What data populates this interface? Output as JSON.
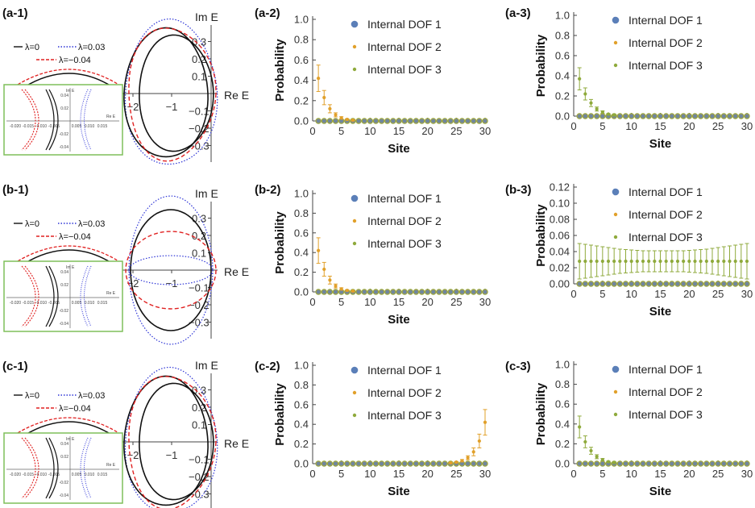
{
  "figure": {
    "panel_labels": [
      "(a-1)",
      "(a-2)",
      "(a-3)",
      "(b-1)",
      "(b-2)",
      "(b-3)",
      "(c-1)",
      "(c-2)",
      "(c-3)"
    ],
    "colors": {
      "dof1": "#5b7fb8",
      "dof2": "#e1a02a",
      "dof3": "#8faa3c",
      "black": "#111111",
      "blue": "#2d34d6",
      "red": "#e02020",
      "inset_border": "#7fbf5a"
    }
  },
  "spectrum_panels": [
    {
      "label": "(a-1)",
      "im_label": "Im E",
      "re_label": "Re E",
      "y_ticks": [
        "0.3",
        "0.2",
        "0.1",
        "−0.1",
        "−0.2",
        "−0.3"
      ],
      "x_ticks": [
        "−2",
        "−1"
      ],
      "legend": [
        "λ=0",
        "λ=0.03",
        "λ=−0.04"
      ],
      "inset": {
        "im_label": "Im E",
        "re_label": "Re E",
        "x_ticks": [
          "-0.020",
          "-0.015",
          "-0.010",
          "-0.005",
          "0.005",
          "0.010",
          "0.015"
        ],
        "y_ticks": [
          "0.04",
          "0.02",
          "-0.02",
          "-0.04"
        ]
      }
    },
    {
      "label": "(b-1)",
      "im_label": "Im E",
      "re_label": "Re E",
      "y_ticks": [
        "0.3",
        "0.2",
        "0.1",
        "−0.1",
        "−0.2",
        "−0.3"
      ],
      "x_ticks": [
        "−2",
        "−1"
      ],
      "legend": [
        "λ=0",
        "λ=0.03",
        "λ=−0.04"
      ],
      "inset": {
        "im_label": "Im E",
        "re_label": "Re E",
        "x_ticks": [
          "-0.020",
          "-0.015",
          "-0.010",
          "-0.005",
          "0.005",
          "0.010",
          "0.015"
        ],
        "y_ticks": [
          "0.04",
          "0.02",
          "-0.02",
          "-0.04"
        ]
      }
    },
    {
      "label": "(c-1)",
      "im_label": "Im E",
      "re_label": "Re E",
      "y_ticks": [
        "0.3",
        "0.2",
        "0.1",
        "−0.1",
        "−0.2",
        "−0.3"
      ],
      "x_ticks": [
        "−2",
        "−1"
      ],
      "legend": [
        "λ=0",
        "λ=0.03",
        "λ=−0.04"
      ],
      "inset": {
        "im_label": "Im E",
        "re_label": "Re E",
        "x_ticks": [
          "-0.020",
          "-0.015",
          "-0.010",
          "-0.005",
          "0.005",
          "0.010",
          "0.015"
        ],
        "y_ticks": [
          "0.04",
          "0.02",
          "-0.02",
          "-0.04"
        ]
      }
    }
  ],
  "chart_data": [
    {
      "type": "scatter",
      "panel": "(a-2)",
      "xlabel": "Site",
      "ylabel": "Probability",
      "xlim": [
        0,
        30
      ],
      "ylim": [
        0,
        1.0
      ],
      "x_ticks": [
        0,
        5,
        10,
        15,
        20,
        25,
        30
      ],
      "y_ticks": [
        0.0,
        0.2,
        0.4,
        0.6,
        0.8,
        1.0
      ],
      "y_tick_labels": [
        "0.0",
        "0.2",
        "0.4",
        "0.6",
        "0.8",
        "1.0"
      ],
      "series": [
        {
          "name": "Internal DOF 1",
          "key": "dof1"
        },
        {
          "name": "Internal DOF 2",
          "key": "dof2"
        },
        {
          "name": "Internal DOF 3",
          "key": "dof3"
        }
      ],
      "dominant": {
        "key": "dof2",
        "values": [
          0.42,
          0.23,
          0.12,
          0.06,
          0.03,
          0.015,
          0.007
        ],
        "errors": [
          0.13,
          0.07,
          0.04,
          0.02,
          0.012,
          0.006,
          0.003
        ],
        "start": 1
      }
    },
    {
      "type": "scatter",
      "panel": "(a-3)",
      "xlabel": "Site",
      "ylabel": "Probability",
      "xlim": [
        0,
        30
      ],
      "ylim": [
        0,
        1.0
      ],
      "x_ticks": [
        0,
        5,
        10,
        15,
        20,
        25,
        30
      ],
      "y_ticks": [
        0.0,
        0.2,
        0.4,
        0.6,
        0.8,
        1.0
      ],
      "y_tick_labels": [
        "0.0",
        "0.2",
        "0.4",
        "0.6",
        "0.8",
        "1.0"
      ],
      "series": [
        {
          "name": "Internal DOF 1",
          "key": "dof1"
        },
        {
          "name": "Internal DOF 2",
          "key": "dof2"
        },
        {
          "name": "Internal DOF 3",
          "key": "dof3"
        }
      ],
      "dominant": {
        "key": "dof3",
        "values": [
          0.37,
          0.22,
          0.13,
          0.07,
          0.04,
          0.02,
          0.01
        ],
        "errors": [
          0.11,
          0.06,
          0.035,
          0.02,
          0.012,
          0.006,
          0.003
        ],
        "start": 1
      }
    },
    {
      "type": "scatter",
      "panel": "(b-2)",
      "xlabel": "Site",
      "ylabel": "Probability",
      "xlim": [
        0,
        30
      ],
      "ylim": [
        0,
        1.0
      ],
      "x_ticks": [
        0,
        5,
        10,
        15,
        20,
        25,
        30
      ],
      "y_ticks": [
        0.0,
        0.2,
        0.4,
        0.6,
        0.8,
        1.0
      ],
      "y_tick_labels": [
        "0.0",
        "0.2",
        "0.4",
        "0.6",
        "0.8",
        "1.0"
      ],
      "series": [
        {
          "name": "Internal DOF 1",
          "key": "dof1"
        },
        {
          "name": "Internal DOF 2",
          "key": "dof2"
        },
        {
          "name": "Internal DOF 3",
          "key": "dof3"
        }
      ],
      "dominant": {
        "key": "dof2",
        "values": [
          0.42,
          0.23,
          0.12,
          0.06,
          0.03,
          0.015,
          0.007
        ],
        "errors": [
          0.13,
          0.07,
          0.04,
          0.02,
          0.012,
          0.006,
          0.003
        ],
        "start": 1
      }
    },
    {
      "type": "scatter",
      "panel": "(b-3)",
      "xlabel": "Site",
      "ylabel": "Probability",
      "xlim": [
        0,
        30
      ],
      "ylim": [
        0,
        0.12
      ],
      "x_ticks": [
        0,
        5,
        10,
        15,
        20,
        25,
        30
      ],
      "y_ticks": [
        0.0,
        0.02,
        0.04,
        0.06,
        0.08,
        0.1,
        0.12
      ],
      "y_tick_labels": [
        "0.00",
        "0.02",
        "0.04",
        "0.06",
        "0.08",
        "0.10",
        "0.12"
      ],
      "series": [
        {
          "name": "Internal DOF 1",
          "key": "dof1"
        },
        {
          "name": "Internal DOF 2",
          "key": "dof2"
        },
        {
          "name": "Internal DOF 3",
          "key": "dof3"
        }
      ],
      "dominant": {
        "key": "dof3",
        "values": [
          0.028,
          0.028,
          0.028,
          0.028,
          0.028,
          0.028,
          0.028,
          0.028,
          0.028,
          0.028,
          0.028,
          0.028,
          0.028,
          0.028,
          0.028,
          0.028,
          0.028,
          0.028,
          0.028,
          0.028,
          0.028,
          0.028,
          0.028,
          0.028,
          0.028,
          0.028,
          0.028,
          0.028,
          0.028,
          0.028
        ],
        "errors": [
          0.022,
          0.021,
          0.02,
          0.019,
          0.018,
          0.017,
          0.016,
          0.015,
          0.0145,
          0.014,
          0.0135,
          0.013,
          0.013,
          0.013,
          0.013,
          0.013,
          0.013,
          0.013,
          0.013,
          0.0135,
          0.014,
          0.0145,
          0.015,
          0.016,
          0.017,
          0.018,
          0.019,
          0.02,
          0.021,
          0.022
        ],
        "start": 1
      }
    },
    {
      "type": "scatter",
      "panel": "(c-2)",
      "xlabel": "Site",
      "ylabel": "Probability",
      "xlim": [
        0,
        30
      ],
      "ylim": [
        0,
        1.0
      ],
      "x_ticks": [
        0,
        5,
        10,
        15,
        20,
        25,
        30
      ],
      "y_ticks": [
        0.0,
        0.2,
        0.4,
        0.6,
        0.8,
        1.0
      ],
      "y_tick_labels": [
        "0.0",
        "0.2",
        "0.4",
        "0.6",
        "0.8",
        "1.0"
      ],
      "series": [
        {
          "name": "Internal DOF 1",
          "key": "dof1"
        },
        {
          "name": "Internal DOF 2",
          "key": "dof2"
        },
        {
          "name": "Internal DOF 3",
          "key": "dof3"
        }
      ],
      "dominant": {
        "key": "dof2",
        "values": [
          0.007,
          0.015,
          0.03,
          0.06,
          0.12,
          0.23,
          0.42
        ],
        "errors": [
          0.003,
          0.006,
          0.012,
          0.02,
          0.04,
          0.07,
          0.13
        ],
        "start": 24
      }
    },
    {
      "type": "scatter",
      "panel": "(c-3)",
      "xlabel": "Site",
      "ylabel": "Probability",
      "xlim": [
        0,
        30
      ],
      "ylim": [
        0,
        1.0
      ],
      "x_ticks": [
        0,
        5,
        10,
        15,
        20,
        25,
        30
      ],
      "y_ticks": [
        0.0,
        0.2,
        0.4,
        0.6,
        0.8,
        1.0
      ],
      "y_tick_labels": [
        "0.0",
        "0.2",
        "0.4",
        "0.6",
        "0.8",
        "1.0"
      ],
      "series": [
        {
          "name": "Internal DOF 1",
          "key": "dof1"
        },
        {
          "name": "Internal DOF 2",
          "key": "dof2"
        },
        {
          "name": "Internal DOF 3",
          "key": "dof3"
        }
      ],
      "dominant": {
        "key": "dof3",
        "values": [
          0.37,
          0.22,
          0.13,
          0.07,
          0.04,
          0.02,
          0.01
        ],
        "errors": [
          0.11,
          0.06,
          0.035,
          0.02,
          0.012,
          0.006,
          0.003
        ],
        "start": 1
      }
    }
  ]
}
